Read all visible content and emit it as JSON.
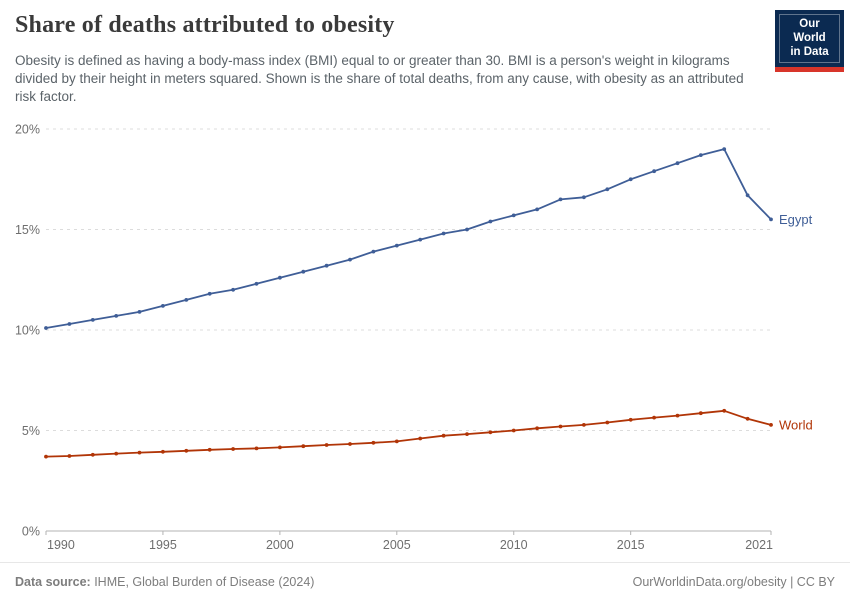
{
  "header": {
    "title": "Share of deaths attributed to obesity",
    "subtitle": "Obesity is defined as having a body-mass index (BMI) equal to or greater than 30. BMI is a person's weight in kilograms divided by their height in meters squared. Shown is the share of total deaths, from any cause, with obesity as an attributed risk factor.",
    "logo": {
      "line1": "Our World",
      "line2": "in Data",
      "bg_color": "#0b2a51",
      "accent_color": "#d8352a"
    }
  },
  "chart_data": {
    "type": "line",
    "title": "Share of deaths attributed to obesity",
    "xlabel": "",
    "ylabel": "",
    "xlim": [
      1990,
      2021
    ],
    "ylim": [
      0,
      20
    ],
    "xticks": [
      1990,
      1995,
      2000,
      2005,
      2010,
      2015,
      2021
    ],
    "yticks": [
      0,
      5,
      10,
      15,
      20
    ],
    "ytick_suffix": "%",
    "grid": "horizontal-dashed",
    "legend_position": "end-of-line-labels",
    "x": [
      1990,
      1991,
      1992,
      1993,
      1994,
      1995,
      1996,
      1997,
      1998,
      1999,
      2000,
      2001,
      2002,
      2003,
      2004,
      2005,
      2006,
      2007,
      2008,
      2009,
      2010,
      2011,
      2012,
      2013,
      2014,
      2015,
      2016,
      2017,
      2018,
      2019,
      2020,
      2021
    ],
    "series": [
      {
        "name": "Egypt",
        "color": "#3f5e97",
        "values": [
          10.1,
          10.3,
          10.5,
          10.7,
          10.9,
          11.2,
          11.5,
          11.8,
          12.0,
          12.3,
          12.6,
          12.9,
          13.2,
          13.5,
          13.9,
          14.2,
          14.5,
          14.8,
          15.0,
          15.4,
          15.7,
          16.0,
          16.5,
          16.6,
          17.0,
          17.5,
          17.9,
          18.3,
          18.7,
          19.0,
          16.7,
          15.5
        ]
      },
      {
        "name": "World",
        "color": "#b13507",
        "values": [
          3.7,
          3.73,
          3.79,
          3.85,
          3.9,
          3.94,
          3.99,
          4.04,
          4.08,
          4.11,
          4.16,
          4.22,
          4.28,
          4.33,
          4.39,
          4.46,
          4.6,
          4.74,
          4.82,
          4.91,
          5.0,
          5.11,
          5.2,
          5.28,
          5.4,
          5.53,
          5.64,
          5.74,
          5.86,
          5.98,
          5.58,
          5.28
        ]
      }
    ]
  },
  "footer": {
    "source_label": "Data source:",
    "source_value": " IHME, Global Burden of Disease (2024)",
    "right_text": "OurWorldinData.org/obesity | CC BY"
  },
  "colors": {
    "grid": "#dcdcdc",
    "axis": "#b3b3b3",
    "tick_label": "#6e6e6e",
    "title_text": "#3a3a3a",
    "subtitle_text": "#5b6369",
    "footer_text": "#7d7d7d"
  }
}
